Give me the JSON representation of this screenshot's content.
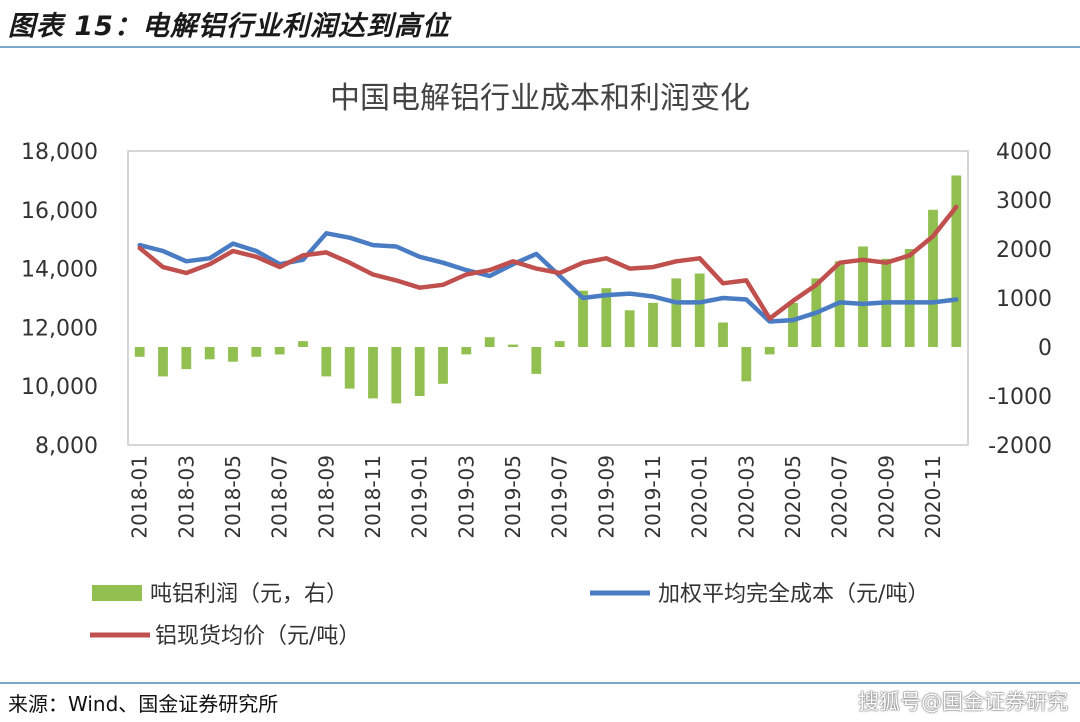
{
  "figure_title": "图表 15：电解铝行业利润达到高位",
  "source": "来源：Wind、国金证券研究所",
  "watermark": "搜狐号@国金证券研究",
  "chart_data": {
    "type": "bar+line",
    "title": "中国电解铝行业成本和利润变化",
    "categories": [
      "2018-01",
      "2018-02",
      "2018-03",
      "2018-04",
      "2018-05",
      "2018-06",
      "2018-07",
      "2018-08",
      "2018-09",
      "2018-10",
      "2018-11",
      "2018-12",
      "2019-01",
      "2019-02",
      "2019-03",
      "2019-04",
      "2019-05",
      "2019-06",
      "2019-07",
      "2019-08",
      "2019-09",
      "2019-10",
      "2019-11",
      "2019-12",
      "2020-01",
      "2020-02",
      "2020-03",
      "2020-04",
      "2020-05",
      "2020-06",
      "2020-07",
      "2020-08",
      "2020-09",
      "2020-10",
      "2020-11",
      "2020-12"
    ],
    "x_tick_labels": [
      "2018-01",
      "2018-03",
      "2018-05",
      "2018-07",
      "2018-09",
      "2018-11",
      "2019-01",
      "2019-03",
      "2019-05",
      "2019-07",
      "2019-09",
      "2019-11",
      "2020-01",
      "2020-03",
      "2020-05",
      "2020-07",
      "2020-09",
      "2020-11"
    ],
    "y_left": {
      "range": [
        8000,
        18000
      ],
      "ticks": [
        "8,000",
        "10,000",
        "12,000",
        "14,000",
        "16,000",
        "18,000"
      ]
    },
    "y_right": {
      "range": [
        -2000,
        4000
      ],
      "ticks": [
        "-2000",
        "-1000",
        "0",
        "1000",
        "2000",
        "3000",
        "4000"
      ]
    },
    "series": [
      {
        "name": "吨铝利润（元，右）",
        "type": "bar",
        "axis": "right",
        "color": "#92c050",
        "values": [
          -200,
          -600,
          -450,
          -250,
          -300,
          -200,
          -150,
          120,
          -600,
          -850,
          -1050,
          -1150,
          -1000,
          -750,
          -150,
          200,
          50,
          -550,
          120,
          1150,
          1200,
          750,
          900,
          1400,
          1500,
          500,
          -700,
          -150,
          900,
          1400,
          1750,
          2050,
          1800,
          2000,
          2800,
          3500
        ]
      },
      {
        "name": "加权平均完全成本（元/吨）",
        "type": "line",
        "axis": "left",
        "color": "#4a7cc4",
        "values": [
          14800,
          14600,
          14250,
          14350,
          14850,
          14600,
          14150,
          14300,
          15200,
          15050,
          14800,
          14750,
          14400,
          14200,
          13950,
          13750,
          14150,
          14500,
          13750,
          13000,
          13100,
          13150,
          13050,
          12850,
          12850,
          13000,
          12950,
          12200,
          12250,
          12500,
          12850,
          12800,
          12850,
          12850,
          12850,
          12950
        ]
      },
      {
        "name": "铝现货均价（元/吨）",
        "type": "line",
        "axis": "left",
        "color": "#c0504d",
        "values": [
          14700,
          14050,
          13850,
          14150,
          14600,
          14400,
          14050,
          14450,
          14550,
          14200,
          13800,
          13600,
          13350,
          13450,
          13800,
          13950,
          14250,
          14000,
          13850,
          14200,
          14350,
          14000,
          14050,
          14250,
          14350,
          13500,
          13600,
          12300,
          12900,
          13450,
          14200,
          14300,
          14200,
          14450,
          15100,
          16100
        ]
      }
    ],
    "legend": [
      "吨铝利润（元，右）",
      "加权平均完全成本（元/吨）",
      "铝现货均价（元/吨）"
    ],
    "legend_position": "bottom",
    "grid": false
  }
}
